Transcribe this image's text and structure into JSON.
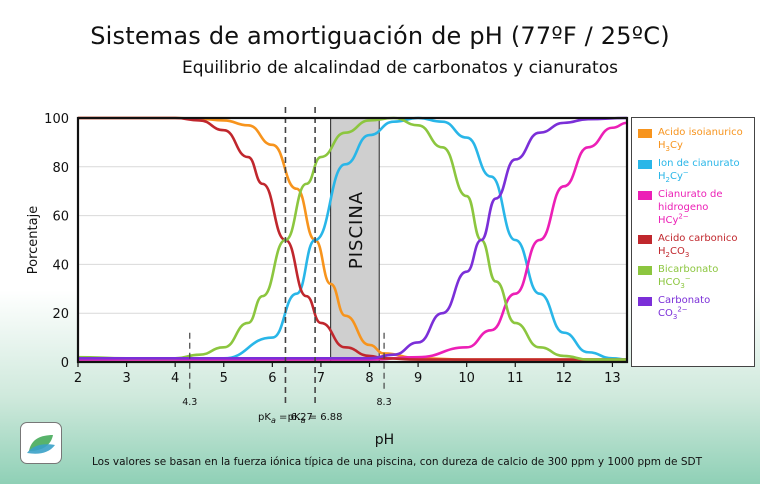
{
  "header": {
    "title": "Sistemas de amortiguación de pH (77ºF / 25ºC)",
    "subtitle": "Equilibrio de alcalindad de carbonatos y cianuratos"
  },
  "footnote": "Los valores se basan en la fuerza iónica típica de una piscina, con dureza de calcio de 300 ppm y 1000 ppm de SDT",
  "chart_data": {
    "type": "line",
    "xlabel": "pH",
    "ylabel": "Porcentaje",
    "xlim": [
      2,
      13.3
    ],
    "ylim": [
      0,
      100
    ],
    "xticks": [
      2,
      3,
      4,
      5,
      6,
      7,
      8,
      9,
      10,
      11,
      12,
      13
    ],
    "yticks": [
      0,
      20,
      40,
      60,
      80,
      100
    ],
    "grid": "horizontal",
    "legend": "right",
    "band": {
      "label": "PISCINA",
      "x0": 7.2,
      "x1": 8.2,
      "color": "#cfcfcf"
    },
    "vlines": [
      {
        "x": 4.3,
        "label": "4.3"
      },
      {
        "x": 6.27,
        "label": "pK",
        "sub": "a",
        "suffix": "= 6.27"
      },
      {
        "x": 6.88,
        "label": "pK",
        "sub": "a",
        "suffix": "= 6.88"
      },
      {
        "x": 8.3,
        "label": "8.3"
      }
    ],
    "series": [
      {
        "key": "h3cy",
        "name": "Acido isoianurico",
        "formula": [
          [
            "H",
            ""
          ],
          [
            "3",
            "sub"
          ],
          [
            "Cy",
            ""
          ]
        ],
        "color": "#f7941d",
        "x": [
          2,
          4,
          4.5,
          5,
          5.5,
          6,
          6.5,
          6.88,
          7.2,
          7.5,
          8,
          8.3,
          9,
          10,
          11,
          12,
          13.3
        ],
        "y": [
          100,
          100,
          99.7,
          99,
          97,
          89,
          71,
          50,
          32,
          19,
          7,
          3.5,
          1.5,
          1,
          1,
          1,
          1
        ]
      },
      {
        "key": "h2cy",
        "name": "Ion de cianurato",
        "formula": [
          [
            "H",
            ""
          ],
          [
            "2",
            "sub"
          ],
          [
            "Cy",
            ""
          ],
          [
            "−",
            "sup"
          ]
        ],
        "color": "#29b6e8",
        "x": [
          2,
          5,
          6,
          6.5,
          6.88,
          7.5,
          8,
          8.5,
          9,
          9.5,
          10,
          10.5,
          11,
          11.5,
          12,
          12.5,
          13,
          13.3
        ],
        "y": [
          1,
          1.5,
          10,
          28,
          50,
          81,
          93,
          98.5,
          100,
          98.5,
          92,
          76,
          50,
          28,
          12,
          4,
          1.5,
          1
        ]
      },
      {
        "key": "hcy",
        "name": "Cianurato de hidrogeno",
        "formula": [
          [
            "HCy",
            ""
          ],
          [
            "2−",
            "sup"
          ]
        ],
        "color": "#ec1fb6",
        "x": [
          2,
          8,
          9,
          10,
          10.5,
          11,
          11.5,
          12,
          12.5,
          13,
          13.3
        ],
        "y": [
          1,
          1,
          2,
          6,
          13,
          28,
          50,
          72,
          88,
          96,
          98
        ]
      },
      {
        "key": "h2co3",
        "name": "Acido carbonico",
        "formula": [
          [
            "H",
            ""
          ],
          [
            "2",
            "sub"
          ],
          [
            "CO",
            ""
          ],
          [
            "3",
            "sub"
          ]
        ],
        "color": "#c0272d",
        "x": [
          2,
          4,
          4.5,
          5,
          5.5,
          5.8,
          6.27,
          6.7,
          7,
          7.5,
          8,
          8.3,
          9,
          10,
          13.3
        ],
        "y": [
          100,
          100,
          99,
          95,
          84,
          73,
          50,
          27,
          16,
          6,
          2.5,
          1.5,
          1,
          1,
          1
        ]
      },
      {
        "key": "hco3",
        "name": "Bicarbonato",
        "formula": [
          [
            "HCO",
            ""
          ],
          [
            "3",
            "sub"
          ],
          [
            "−",
            "sup"
          ]
        ],
        "color": "#8cc63f",
        "x": [
          2,
          3,
          4,
          4.5,
          5,
          5.5,
          5.8,
          6.27,
          6.7,
          7,
          7.5,
          8,
          8.5,
          9,
          9.5,
          10,
          10.3,
          10.6,
          11,
          11.5,
          12,
          12.5,
          13.3
        ],
        "y": [
          2,
          1.5,
          1.5,
          3,
          6,
          16,
          27,
          50,
          73,
          84,
          94,
          99,
          100,
          97,
          88,
          68,
          50,
          33,
          16,
          6,
          2.5,
          1,
          1
        ]
      },
      {
        "key": "co3",
        "name": "Carbonato",
        "formula": [
          [
            "CO",
            ""
          ],
          [
            "3",
            "sub"
          ],
          [
            "2−",
            "sup"
          ]
        ],
        "color": "#7b2fd8",
        "x": [
          2,
          7,
          8,
          8.5,
          9,
          9.5,
          10,
          10.3,
          10.6,
          11,
          11.5,
          12,
          12.5,
          13.3
        ],
        "y": [
          1.5,
          1.5,
          1.5,
          3,
          8,
          20,
          37,
          50,
          67,
          83,
          94,
          98,
          99.5,
          100
        ]
      }
    ]
  }
}
